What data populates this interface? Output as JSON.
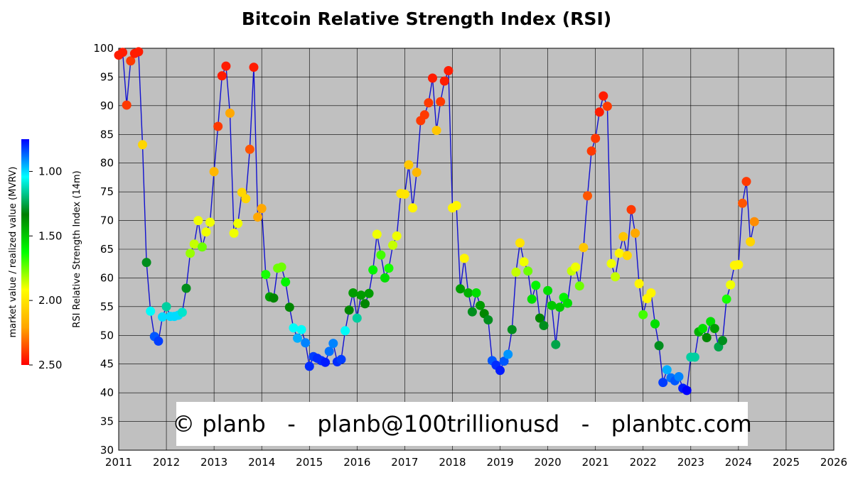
{
  "title": "Bitcoin Relative Strength Index (RSI)",
  "watermark": "© planb   -   planb@100trillionusd   -   planbtc.com",
  "chart_data": {
    "type": "scatter",
    "title": "Bitcoin Relative Strength Index (RSI)",
    "ylabel": "RSI Relative Strength Index (14m)",
    "xlim": [
      2011,
      2026
    ],
    "ylim": [
      30,
      100
    ],
    "x_ticks": [
      "2011",
      "2012",
      "2013",
      "2014",
      "2015",
      "2016",
      "2017",
      "2018",
      "2019",
      "2020",
      "2021",
      "2022",
      "2023",
      "2024",
      "2025",
      "2026"
    ],
    "y_ticks": [
      "30",
      "35",
      "40",
      "45",
      "50",
      "55",
      "60",
      "65",
      "70",
      "75",
      "80",
      "85",
      "90",
      "95",
      "100"
    ],
    "grid": true,
    "plot_background": "#c0c0c0",
    "line_color": "#1010d0",
    "colorbar": {
      "label": "market value / realized value (MVRV)",
      "ticks": [
        "1.00",
        "1.50",
        "2.00",
        "2.50"
      ],
      "range": [
        0.75,
        2.5
      ],
      "colors": [
        "#0000ff",
        "#00ffff",
        "#007f00",
        "#00ff00",
        "#ffff00",
        "#ffa500",
        "#ff0000"
      ]
    },
    "series": [
      {
        "points": [
          [
            "2011-01",
            98.8,
            2.45
          ],
          [
            "2011-02",
            99.3,
            2.45
          ],
          [
            "2011-03",
            90.1,
            2.4
          ],
          [
            "2011-04",
            97.8,
            2.4
          ],
          [
            "2011-05",
            99.1,
            2.45
          ],
          [
            "2011-06",
            99.4,
            2.45
          ],
          [
            "2011-07",
            83.2,
            2.05
          ],
          [
            "2011-08",
            62.7,
            1.3
          ],
          [
            "2011-09",
            54.2,
            1.05
          ],
          [
            "2011-10",
            49.8,
            0.85
          ],
          [
            "2011-11",
            49.0,
            0.82
          ],
          [
            "2011-12",
            53.2,
            1.0
          ],
          [
            "2012-01",
            55.0,
            1.15
          ],
          [
            "2012-02",
            53.3,
            1.0
          ],
          [
            "2012-03",
            53.3,
            1.0
          ],
          [
            "2012-04",
            53.5,
            1.0
          ],
          [
            "2012-05",
            54.0,
            1.1
          ],
          [
            "2012-06",
            58.2,
            1.3
          ],
          [
            "2012-07",
            64.3,
            1.8
          ],
          [
            "2012-08",
            65.9,
            1.85
          ],
          [
            "2012-09",
            70.0,
            1.9
          ],
          [
            "2012-10",
            65.4,
            1.75
          ],
          [
            "2012-11",
            68.0,
            1.9
          ],
          [
            "2012-12",
            69.7,
            1.9
          ],
          [
            "2013-01",
            78.5,
            2.15
          ],
          [
            "2013-02",
            86.4,
            2.4
          ],
          [
            "2013-03",
            95.2,
            2.45
          ],
          [
            "2013-04",
            96.9,
            2.45
          ],
          [
            "2013-05",
            88.7,
            2.2
          ],
          [
            "2013-06",
            67.8,
            1.9
          ],
          [
            "2013-07",
            69.5,
            1.9
          ],
          [
            "2013-08",
            74.9,
            2.05
          ],
          [
            "2013-09",
            73.8,
            2.05
          ],
          [
            "2013-10",
            82.4,
            2.35
          ],
          [
            "2013-11",
            96.7,
            2.45
          ],
          [
            "2013-12",
            70.6,
            2.2
          ],
          [
            "2014-01",
            72.1,
            2.2
          ],
          [
            "2014-02",
            60.6,
            1.65
          ],
          [
            "2014-03",
            56.7,
            1.4
          ],
          [
            "2014-04",
            56.5,
            1.35
          ],
          [
            "2014-05",
            61.7,
            1.75
          ],
          [
            "2014-06",
            61.9,
            1.75
          ],
          [
            "2014-07",
            59.3,
            1.6
          ],
          [
            "2014-08",
            54.9,
            1.35
          ],
          [
            "2014-09",
            51.3,
            1.05
          ],
          [
            "2014-10",
            49.5,
            0.95
          ],
          [
            "2014-11",
            51.0,
            1.05
          ],
          [
            "2014-12",
            48.7,
            0.9
          ],
          [
            "2015-01",
            44.6,
            0.8
          ],
          [
            "2015-02",
            46.3,
            0.82
          ],
          [
            "2015-03",
            46.0,
            0.8
          ],
          [
            "2015-04",
            45.6,
            0.8
          ],
          [
            "2015-05",
            45.3,
            0.78
          ],
          [
            "2015-06",
            47.2,
            0.88
          ],
          [
            "2015-07",
            48.6,
            0.9
          ],
          [
            "2015-08",
            45.4,
            0.8
          ],
          [
            "2015-09",
            45.8,
            0.82
          ],
          [
            "2015-10",
            50.8,
            1.05
          ],
          [
            "2015-11",
            54.4,
            1.35
          ],
          [
            "2015-12",
            57.4,
            1.4
          ],
          [
            "2016-01",
            53.0,
            1.15
          ],
          [
            "2016-02",
            57.0,
            1.4
          ],
          [
            "2016-03",
            55.5,
            1.35
          ],
          [
            "2016-04",
            57.3,
            1.4
          ],
          [
            "2016-05",
            61.4,
            1.6
          ],
          [
            "2016-06",
            67.6,
            1.9
          ],
          [
            "2016-07",
            64.0,
            1.7
          ],
          [
            "2016-08",
            60.0,
            1.55
          ],
          [
            "2016-09",
            61.7,
            1.65
          ],
          [
            "2016-10",
            65.7,
            1.85
          ],
          [
            "2016-11",
            67.3,
            1.9
          ],
          [
            "2016-12",
            74.7,
            2.0
          ],
          [
            "2017-01",
            74.6,
            2.0
          ],
          [
            "2017-02",
            79.7,
            2.1
          ],
          [
            "2017-03",
            72.2,
            1.95
          ],
          [
            "2017-04",
            78.4,
            2.15
          ],
          [
            "2017-05",
            87.4,
            2.4
          ],
          [
            "2017-06",
            88.4,
            2.4
          ],
          [
            "2017-07",
            90.5,
            2.4
          ],
          [
            "2017-08",
            94.8,
            2.45
          ],
          [
            "2017-09",
            85.7,
            2.1
          ],
          [
            "2017-10",
            90.7,
            2.4
          ],
          [
            "2017-11",
            94.3,
            2.45
          ],
          [
            "2017-12",
            96.1,
            2.45
          ],
          [
            "2018-01",
            72.2,
            1.95
          ],
          [
            "2018-02",
            72.6,
            1.95
          ],
          [
            "2018-03",
            58.1,
            1.4
          ],
          [
            "2018-04",
            63.4,
            1.95
          ],
          [
            "2018-05",
            57.4,
            1.45
          ],
          [
            "2018-06",
            54.1,
            1.3
          ],
          [
            "2018-07",
            57.4,
            1.55
          ],
          [
            "2018-08",
            55.2,
            1.4
          ],
          [
            "2018-09",
            53.8,
            1.35
          ],
          [
            "2018-10",
            52.7,
            1.3
          ],
          [
            "2018-11",
            45.6,
            0.85
          ],
          [
            "2018-12",
            44.8,
            0.8
          ],
          [
            "2019-01",
            43.9,
            0.78
          ],
          [
            "2019-02",
            45.5,
            0.85
          ],
          [
            "2019-03",
            46.7,
            0.92
          ],
          [
            "2019-04",
            51.0,
            1.3
          ],
          [
            "2019-05",
            61.0,
            1.85
          ],
          [
            "2019-06",
            66.1,
            2.0
          ],
          [
            "2019-07",
            62.8,
            1.9
          ],
          [
            "2019-08",
            61.2,
            1.75
          ],
          [
            "2019-09",
            56.3,
            1.55
          ],
          [
            "2019-10",
            58.7,
            1.6
          ],
          [
            "2019-11",
            53.0,
            1.35
          ],
          [
            "2019-12",
            51.7,
            1.3
          ],
          [
            "2020-01",
            57.8,
            1.55
          ],
          [
            "2020-02",
            55.2,
            1.5
          ],
          [
            "2020-03",
            48.4,
            1.25
          ],
          [
            "2020-04",
            54.9,
            1.5
          ],
          [
            "2020-05",
            56.6,
            1.6
          ],
          [
            "2020-06",
            55.6,
            1.55
          ],
          [
            "2020-07",
            61.2,
            1.85
          ],
          [
            "2020-08",
            61.9,
            1.9
          ],
          [
            "2020-09",
            58.6,
            1.75
          ],
          [
            "2020-10",
            65.3,
            2.1
          ],
          [
            "2020-11",
            74.3,
            2.35
          ],
          [
            "2020-12",
            82.1,
            2.4
          ],
          [
            "2021-01",
            84.3,
            2.4
          ],
          [
            "2021-02",
            88.9,
            2.45
          ],
          [
            "2021-03",
            91.7,
            2.45
          ],
          [
            "2021-04",
            89.9,
            2.4
          ],
          [
            "2021-05",
            62.5,
            1.9
          ],
          [
            "2021-06",
            60.2,
            1.85
          ],
          [
            "2021-07",
            64.3,
            1.95
          ],
          [
            "2021-08",
            67.2,
            2.1
          ],
          [
            "2021-09",
            63.9,
            2.05
          ],
          [
            "2021-10",
            71.9,
            2.4
          ],
          [
            "2021-11",
            67.8,
            2.2
          ],
          [
            "2021-12",
            59.0,
            1.95
          ],
          [
            "2022-01",
            53.6,
            1.7
          ],
          [
            "2022-02",
            56.4,
            1.95
          ],
          [
            "2022-03",
            57.4,
            1.95
          ],
          [
            "2022-04",
            52.0,
            1.55
          ],
          [
            "2022-05",
            48.2,
            1.3
          ],
          [
            "2022-06",
            41.8,
            0.82
          ],
          [
            "2022-07",
            44.0,
            0.95
          ],
          [
            "2022-08",
            42.6,
            0.88
          ],
          [
            "2022-09",
            42.1,
            0.85
          ],
          [
            "2022-10",
            42.8,
            0.9
          ],
          [
            "2022-11",
            40.8,
            0.78
          ],
          [
            "2022-12",
            40.4,
            0.75
          ],
          [
            "2023-01",
            46.2,
            1.15
          ],
          [
            "2023-02",
            46.2,
            1.15
          ],
          [
            "2023-03",
            50.6,
            1.45
          ],
          [
            "2023-04",
            51.2,
            1.55
          ],
          [
            "2023-05",
            49.6,
            1.35
          ],
          [
            "2023-06",
            52.4,
            1.55
          ],
          [
            "2023-07",
            51.2,
            1.4
          ],
          [
            "2023-08",
            48.0,
            1.25
          ],
          [
            "2023-09",
            49.1,
            1.3
          ],
          [
            "2023-10",
            56.3,
            1.65
          ],
          [
            "2023-11",
            58.8,
            1.9
          ],
          [
            "2023-12",
            62.2,
            1.95
          ],
          [
            "2024-01",
            62.3,
            1.95
          ],
          [
            "2024-02",
            73.0,
            2.35
          ],
          [
            "2024-03",
            76.8,
            2.4
          ],
          [
            "2024-04",
            66.3,
            2.05
          ],
          [
            "2024-05",
            69.8,
            2.25
          ]
        ]
      }
    ]
  }
}
